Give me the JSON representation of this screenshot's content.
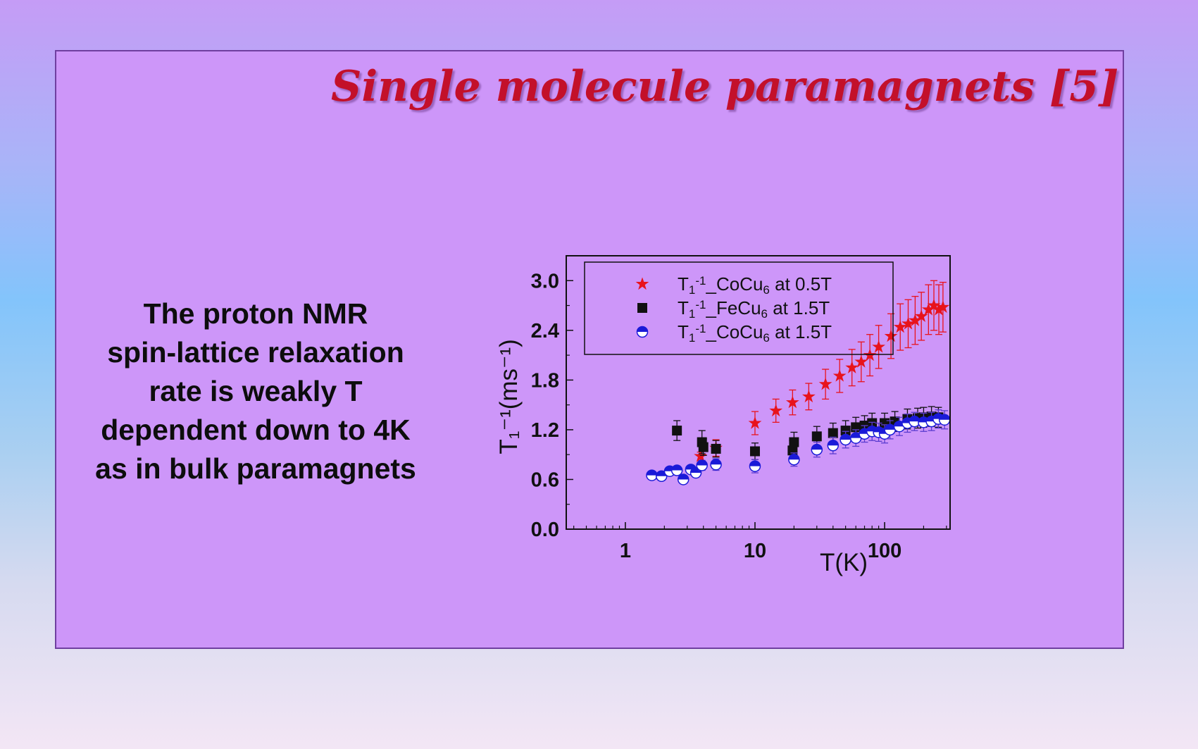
{
  "slide": {
    "title": "Single molecule paramagnets [5]",
    "body_lines": [
      "The proton NMR",
      "spin-lattice relaxation",
      "rate is weakly T",
      "dependent down to 4K",
      "as in bulk paramagnets"
    ]
  },
  "colors": {
    "title": "#c3102a",
    "series_red": "#e8131c",
    "series_black": "#111111",
    "series_blue": "#1a1ad8",
    "errbar_blue": "#5a3ccf"
  },
  "chart_data": {
    "type": "scatter",
    "title": "",
    "xlabel": "T(K)",
    "ylabel": "T₁⁻¹(ms⁻¹)",
    "xscale": "log",
    "xlim": [
      0.35,
      320
    ],
    "ylim": [
      0,
      3.3
    ],
    "yticks": [
      0.0,
      0.6,
      1.2,
      1.8,
      2.4,
      3.0
    ],
    "ytick_labels": [
      "0.0",
      "0.6",
      "1.2",
      "1.8",
      "2.4",
      "3.0"
    ],
    "xticks": [
      1,
      10,
      100
    ],
    "xtick_labels": [
      "1",
      "10",
      "100"
    ],
    "legend_position": "top-left",
    "series": [
      {
        "name": "T1-1_CoCu6 at 0.5T",
        "legend": {
          "base": "T",
          "sub": "1",
          "sup": "-1",
          "mid": "_CoCu",
          "sub2": "6",
          "tail": " at 0.5T"
        },
        "marker": "star",
        "x": [
          3.8,
          5,
          10,
          14.5,
          19.5,
          26,
          35,
          45,
          56,
          66,
          77,
          90,
          112,
          132,
          152,
          172,
          192,
          218,
          240,
          262,
          282
        ],
        "y": [
          0.88,
          0.98,
          1.28,
          1.43,
          1.53,
          1.6,
          1.75,
          1.85,
          1.95,
          2.02,
          2.1,
          2.2,
          2.33,
          2.44,
          2.48,
          2.52,
          2.57,
          2.65,
          2.7,
          2.65,
          2.68
        ],
        "err": [
          0.05,
          0.1,
          0.14,
          0.14,
          0.15,
          0.16,
          0.18,
          0.2,
          0.22,
          0.24,
          0.25,
          0.26,
          0.27,
          0.28,
          0.29,
          0.29,
          0.29,
          0.3,
          0.3,
          0.3,
          0.3
        ]
      },
      {
        "name": "T1-1_FeCu6 at 1.5T",
        "legend": {
          "base": "T",
          "sub": "1",
          "sup": "-1",
          "mid": "_FeCu",
          "sub2": "6",
          "tail": " at 1.5T"
        },
        "marker": "square",
        "x": [
          2.5,
          3.9,
          4,
          5,
          10,
          19.5,
          20,
          30,
          40,
          50,
          60,
          70,
          80,
          100,
          120,
          150,
          180,
          200,
          230,
          260
        ],
        "y": [
          1.19,
          1.05,
          0.99,
          0.97,
          0.94,
          0.95,
          1.05,
          1.12,
          1.16,
          1.19,
          1.23,
          1.25,
          1.28,
          1.28,
          1.3,
          1.33,
          1.34,
          1.35,
          1.36,
          1.35
        ],
        "err": [
          0.12,
          0.14,
          0.1,
          0.1,
          0.1,
          0.12,
          0.12,
          0.12,
          0.12,
          0.12,
          0.12,
          0.12,
          0.12,
          0.12,
          0.12,
          0.12,
          0.12,
          0.12,
          0.12,
          0.12
        ]
      },
      {
        "name": "T1-1_CoCu6 at 1.5T",
        "legend": {
          "base": "T",
          "sub": "1",
          "sup": "-1",
          "mid": "_CoCu",
          "sub2": "6",
          "tail": " at 1.5T"
        },
        "marker": "half-circle",
        "x": [
          1.6,
          1.9,
          2.2,
          2.5,
          2.8,
          3.2,
          3.5,
          3.9,
          5,
          10,
          20,
          30,
          40,
          50,
          60,
          70,
          80,
          90,
          100,
          110,
          130,
          150,
          170,
          200,
          230,
          260,
          290
        ],
        "y": [
          0.65,
          0.64,
          0.7,
          0.71,
          0.6,
          0.72,
          0.68,
          0.77,
          0.78,
          0.76,
          0.84,
          0.96,
          1.01,
          1.08,
          1.1,
          1.15,
          1.18,
          1.17,
          1.15,
          1.2,
          1.24,
          1.28,
          1.3,
          1.29,
          1.3,
          1.33,
          1.32
        ],
        "err": [
          0.05,
          0.05,
          0.05,
          0.05,
          0.05,
          0.05,
          0.05,
          0.06,
          0.07,
          0.08,
          0.08,
          0.09,
          0.1,
          0.1,
          0.1,
          0.1,
          0.11,
          0.11,
          0.11,
          0.11,
          0.11,
          0.11,
          0.11,
          0.11,
          0.11,
          0.11,
          0.11
        ]
      }
    ]
  }
}
